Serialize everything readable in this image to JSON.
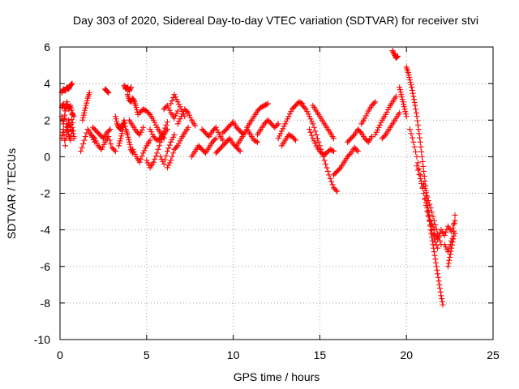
{
  "chart_data": {
    "type": "scatter",
    "title": "Day 303 of 2020, Sidereal Day-to-day VTEC variation (SDTVAR) for receiver stvi",
    "xlabel": "GPS time / hours",
    "ylabel": "SDTVAR / TECUs",
    "xlim": [
      0,
      25
    ],
    "ylim": [
      -10,
      6
    ],
    "xticks": [
      "0",
      "5",
      "10",
      "15",
      "20",
      "25"
    ],
    "yticks": [
      "-10",
      "-8",
      "-6",
      "-4",
      "-2",
      "0",
      "2",
      "4",
      "6"
    ],
    "grid": true,
    "marker": "+",
    "color": "#ff0000",
    "series": [
      {
        "name": "SDTVAR",
        "segments": [
          {
            "x": [
              0.1,
              0.2,
              0.3,
              0.4,
              0.5,
              0.6,
              0.7
            ],
            "y": [
              3.5,
              3.7,
              3.6,
              3.8,
              3.7,
              3.9,
              4.0
            ]
          },
          {
            "x": [
              0.1,
              0.2,
              0.3,
              0.4,
              0.5,
              0.6,
              0.7,
              0.8
            ],
            "y": [
              2.2,
              1.8,
              2.5,
              1.2,
              2.0,
              1.5,
              2.3,
              1.0
            ]
          },
          {
            "x": [
              0.1,
              0.2,
              0.3,
              0.4,
              0.5,
              0.6,
              0.7,
              0.8
            ],
            "y": [
              1.0,
              1.5,
              0.6,
              1.8,
              1.2,
              0.9,
              1.6,
              1.1
            ]
          },
          {
            "x": [
              0.1,
              0.2,
              0.3,
              0.4,
              0.5,
              0.6,
              0.7,
              0.8
            ],
            "y": [
              2.7,
              2.9,
              2.5,
              3.0,
              2.6,
              2.8,
              2.4,
              2.2
            ]
          },
          {
            "x": [
              1.3,
              1.4,
              1.5,
              1.6,
              1.7
            ],
            "y": [
              2.0,
              2.4,
              2.8,
              3.2,
              3.5
            ]
          },
          {
            "x": [
              1.2,
              1.4,
              1.6,
              1.8,
              2.0
            ],
            "y": [
              0.3,
              0.9,
              1.5,
              1.2,
              0.8
            ]
          },
          {
            "x": [
              1.8,
              2.0,
              2.2,
              2.4,
              2.6,
              2.8,
              3.0,
              3.2
            ],
            "y": [
              1.2,
              1.0,
              0.6,
              0.4,
              0.8,
              1.1,
              0.5,
              0.3
            ]
          },
          {
            "x": [
              1.9,
              2.1,
              2.3,
              2.5,
              2.7,
              2.9
            ],
            "y": [
              1.6,
              1.4,
              1.2,
              1.0,
              1.3,
              1.5
            ]
          },
          {
            "x": [
              2.6,
              2.7,
              2.8
            ],
            "y": [
              3.7,
              3.6,
              3.5
            ]
          },
          {
            "x": [
              3.2,
              3.3,
              3.4,
              3.5,
              3.6,
              3.7
            ],
            "y": [
              2.2,
              1.8,
              1.6,
              1.5,
              1.7,
              1.9
            ]
          },
          {
            "x": [
              3.4,
              3.5,
              3.6,
              3.7,
              3.8,
              3.9,
              4.0,
              4.1,
              4.2
            ],
            "y": [
              0.6,
              1.0,
              1.4,
              2.0,
              1.5,
              1.2,
              0.8,
              0.4,
              0.2
            ]
          },
          {
            "x": [
              3.7,
              3.8,
              3.9,
              4.0,
              4.1
            ],
            "y": [
              3.9,
              3.7,
              3.8,
              3.6,
              3.8
            ]
          },
          {
            "x": [
              3.9,
              4.0,
              4.1,
              4.2,
              4.3,
              4.4,
              4.5
            ],
            "y": [
              3.4,
              3.1,
              3.0,
              3.2,
              3.0,
              2.7,
              2.3
            ]
          },
          {
            "x": [
              4.0,
              4.2,
              4.4,
              4.6,
              4.8
            ],
            "y": [
              2.0,
              1.7,
              1.4,
              1.2,
              1.6
            ]
          },
          {
            "x": [
              4.2,
              4.4,
              4.6,
              4.8,
              5.0,
              5.2
            ],
            "y": [
              0.4,
              0.0,
              -0.3,
              0.2,
              0.6,
              0.9
            ]
          },
          {
            "x": [
              4.6,
              4.8,
              5.0,
              5.2,
              5.4,
              5.6,
              5.8,
              6.0
            ],
            "y": [
              2.4,
              2.6,
              2.5,
              2.3,
              2.0,
              1.6,
              1.3,
              1.0
            ]
          },
          {
            "x": [
              5.0,
              5.2,
              5.4,
              5.6,
              5.8,
              6.0,
              6.2
            ],
            "y": [
              -0.2,
              -0.6,
              -0.3,
              0.2,
              0.8,
              1.2,
              1.5
            ]
          },
          {
            "x": [
              5.2,
              5.4,
              5.6,
              5.8,
              6.0,
              6.2
            ],
            "y": [
              1.5,
              1.1,
              0.9,
              1.0,
              1.4,
              1.9
            ]
          },
          {
            "x": [
              5.8,
              6.0,
              6.2,
              6.4,
              6.6
            ],
            "y": [
              0.0,
              -0.4,
              0.3,
              0.8,
              1.2
            ]
          },
          {
            "x": [
              6.0,
              6.2,
              6.4,
              6.6,
              6.8
            ],
            "y": [
              2.6,
              2.8,
              2.4,
              2.1,
              2.5
            ]
          },
          {
            "x": [
              6.2,
              6.4,
              6.6,
              6.8,
              7.0,
              7.2,
              7.4
            ],
            "y": [
              -0.6,
              -0.2,
              0.4,
              0.6,
              1.0,
              1.3,
              1.6
            ]
          },
          {
            "x": [
              6.4,
              6.6,
              6.8,
              7.0,
              7.2
            ],
            "y": [
              2.9,
              3.4,
              3.0,
              2.6,
              2.2
            ]
          },
          {
            "x": [
              6.8,
              7.0,
              7.2,
              7.4,
              7.6,
              7.8
            ],
            "y": [
              1.8,
              2.2,
              2.6,
              2.4,
              2.0,
              1.7
            ]
          },
          {
            "x": [
              7.6,
              7.8,
              8.0,
              8.2,
              8.4,
              8.6,
              8.8,
              9.0
            ],
            "y": [
              0.0,
              0.3,
              0.6,
              0.4,
              0.2,
              0.5,
              0.8,
              1.0
            ]
          },
          {
            "x": [
              8.2,
              8.4,
              8.6,
              8.8,
              9.0,
              9.2,
              9.4
            ],
            "y": [
              1.5,
              1.3,
              1.1,
              1.4,
              1.6,
              1.2,
              0.9
            ]
          },
          {
            "x": [
              9.0,
              9.2,
              9.4,
              9.6,
              9.8,
              10.0,
              10.2,
              10.4
            ],
            "y": [
              0.2,
              0.4,
              0.6,
              0.8,
              1.0,
              0.7,
              0.5,
              0.3
            ]
          },
          {
            "x": [
              9.4,
              9.6,
              9.8,
              10.0,
              10.2,
              10.4,
              10.6
            ],
            "y": [
              1.3,
              1.5,
              1.7,
              1.9,
              1.6,
              1.4,
              1.2
            ]
          },
          {
            "x": [
              10.2,
              10.4,
              10.6,
              10.8,
              11.0,
              11.2,
              11.4
            ],
            "y": [
              0.6,
              0.9,
              1.2,
              1.5,
              1.2,
              0.9,
              0.8
            ]
          },
          {
            "x": [
              10.8,
              11.0,
              11.2,
              11.4,
              11.6,
              11.8,
              12.0
            ],
            "y": [
              1.6,
              1.9,
              2.2,
              2.5,
              2.7,
              2.8,
              2.9
            ]
          },
          {
            "x": [
              11.4,
              11.6,
              11.8,
              12.0,
              12.2,
              12.4,
              12.6
            ],
            "y": [
              1.2,
              1.5,
              1.8,
              2.0,
              1.8,
              1.6,
              1.8
            ]
          },
          {
            "x": [
              12.6,
              12.8,
              13.0,
              13.2,
              13.4,
              13.6,
              13.8,
              14.0
            ],
            "y": [
              1.0,
              1.4,
              1.8,
              2.2,
              2.6,
              2.8,
              3.0,
              2.9
            ]
          },
          {
            "x": [
              12.8,
              13.0,
              13.2,
              13.4,
              13.6
            ],
            "y": [
              0.6,
              0.9,
              1.2,
              1.1,
              0.9
            ]
          },
          {
            "x": [
              14.0,
              14.2,
              14.4,
              14.6,
              14.8,
              15.0,
              15.2,
              15.4,
              15.6,
              15.8,
              16.0
            ],
            "y": [
              2.8,
              2.6,
              2.2,
              1.8,
              1.2,
              0.6,
              0.0,
              -0.6,
              -1.2,
              -1.7,
              -1.9
            ]
          },
          {
            "x": [
              14.4,
              14.6,
              14.8,
              15.0,
              15.2,
              15.4,
              15.6,
              15.8
            ],
            "y": [
              1.5,
              1.0,
              0.6,
              0.3,
              0.1,
              0.2,
              0.4,
              0.3
            ]
          },
          {
            "x": [
              14.6,
              14.8,
              15.0,
              15.2,
              15.4,
              15.6,
              15.8
            ],
            "y": [
              2.8,
              2.5,
              2.2,
              1.9,
              1.6,
              1.3,
              1.0
            ]
          },
          {
            "x": [
              15.8,
              16.0,
              16.2,
              16.4,
              16.6,
              16.8,
              17.0,
              17.2
            ],
            "y": [
              -1.0,
              -0.8,
              -0.6,
              -0.3,
              0.0,
              0.2,
              0.5,
              0.3
            ]
          },
          {
            "x": [
              16.6,
              16.8,
              17.0,
              17.2,
              17.4,
              17.6,
              17.8,
              18.0
            ],
            "y": [
              0.8,
              1.0,
              1.2,
              1.5,
              1.3,
              1.0,
              0.8,
              1.1
            ]
          },
          {
            "x": [
              17.4,
              17.6,
              17.8,
              18.0,
              18.2
            ],
            "y": [
              1.8,
              2.1,
              2.5,
              2.8,
              3.0
            ]
          },
          {
            "x": [
              18.2,
              18.4,
              18.6,
              18.8,
              19.0,
              19.2,
              19.4
            ],
            "y": [
              1.2,
              1.6,
              2.0,
              2.3,
              2.7,
              3.0,
              3.3
            ]
          },
          {
            "x": [
              18.6,
              18.8,
              19.0,
              19.2,
              19.4,
              19.6
            ],
            "y": [
              1.0,
              1.2,
              1.5,
              1.8,
              2.1,
              2.4
            ]
          },
          {
            "x": [
              19.2,
              19.3,
              19.4,
              19.5
            ],
            "y": [
              5.8,
              5.6,
              5.4,
              5.5
            ]
          },
          {
            "x": [
              19.6,
              19.7,
              19.8,
              19.9,
              20.0
            ],
            "y": [
              3.8,
              3.4,
              3.0,
              2.6,
              2.2
            ]
          },
          {
            "x": [
              20.0,
              20.1,
              20.2,
              20.3,
              20.4,
              20.5,
              20.6,
              20.7,
              20.8,
              20.9,
              21.0,
              21.1,
              21.2,
              21.3,
              21.4,
              21.5,
              21.6,
              21.7,
              21.8,
              21.9,
              22.0,
              22.1
            ],
            "y": [
              4.9,
              4.6,
              4.2,
              3.8,
              3.3,
              2.8,
              2.2,
              1.5,
              0.8,
              0.0,
              -0.8,
              -1.6,
              -2.4,
              -3.2,
              -4.0,
              -4.6,
              -5.2,
              -5.8,
              -6.4,
              -7.0,
              -7.6,
              -8.1
            ]
          },
          {
            "x": [
              20.2,
              20.4,
              20.6,
              20.8,
              21.0,
              21.2,
              21.4,
              21.6,
              21.8
            ],
            "y": [
              1.5,
              0.8,
              0.0,
              -1.0,
              -2.0,
              -3.0,
              -3.8,
              -4.5,
              -5.0
            ]
          },
          {
            "x": [
              20.6,
              20.8,
              21.0,
              21.2,
              21.4,
              21.6
            ],
            "y": [
              -0.5,
              -1.2,
              -2.0,
              -2.8,
              -3.5,
              -4.0
            ]
          },
          {
            "x": [
              21.0,
              21.2,
              21.4,
              21.6,
              21.8,
              22.0
            ],
            "y": [
              -1.5,
              -2.2,
              -2.8,
              -3.5,
              -4.2,
              -4.8
            ]
          },
          {
            "x": [
              21.6,
              21.8,
              22.0,
              22.2,
              22.4,
              22.6,
              22.8
            ],
            "y": [
              -4.2,
              -4.5,
              -4.0,
              -4.3,
              -3.8,
              -4.1,
              -3.5
            ]
          },
          {
            "x": [
              22.2,
              22.4,
              22.6,
              22.8
            ],
            "y": [
              -4.8,
              -5.2,
              -4.6,
              -4.2
            ]
          },
          {
            "x": [
              22.4,
              22.5,
              22.6,
              22.7,
              22.8
            ],
            "y": [
              -6.0,
              -5.5,
              -5.0,
              -4.5,
              -3.2
            ]
          }
        ]
      }
    ]
  }
}
